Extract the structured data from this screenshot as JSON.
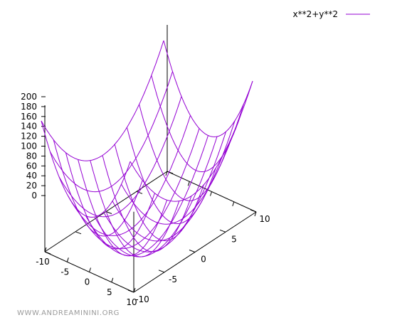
{
  "chart_data": {
    "type": "surface",
    "function": "x**2+y**2",
    "x_range": [
      -10,
      10
    ],
    "y_range": [
      -10,
      10
    ],
    "z_range": [
      0,
      200
    ],
    "grid_steps": 10,
    "x_ticks": [
      "-10",
      "-5",
      "0",
      "5",
      "10"
    ],
    "y_ticks": [
      "-10",
      "-5",
      "0",
      "5",
      "10"
    ],
    "z_ticks": [
      "0",
      "20",
      "40",
      "60",
      "80",
      "100",
      "120",
      "140",
      "160",
      "180",
      "200"
    ],
    "series": [
      {
        "name": "x**2+y**2",
        "color": "#9400d3"
      }
    ],
    "legend_placement": "top-right",
    "grid": false
  },
  "watermark": "WWW.ANDREAMININI.ORG"
}
